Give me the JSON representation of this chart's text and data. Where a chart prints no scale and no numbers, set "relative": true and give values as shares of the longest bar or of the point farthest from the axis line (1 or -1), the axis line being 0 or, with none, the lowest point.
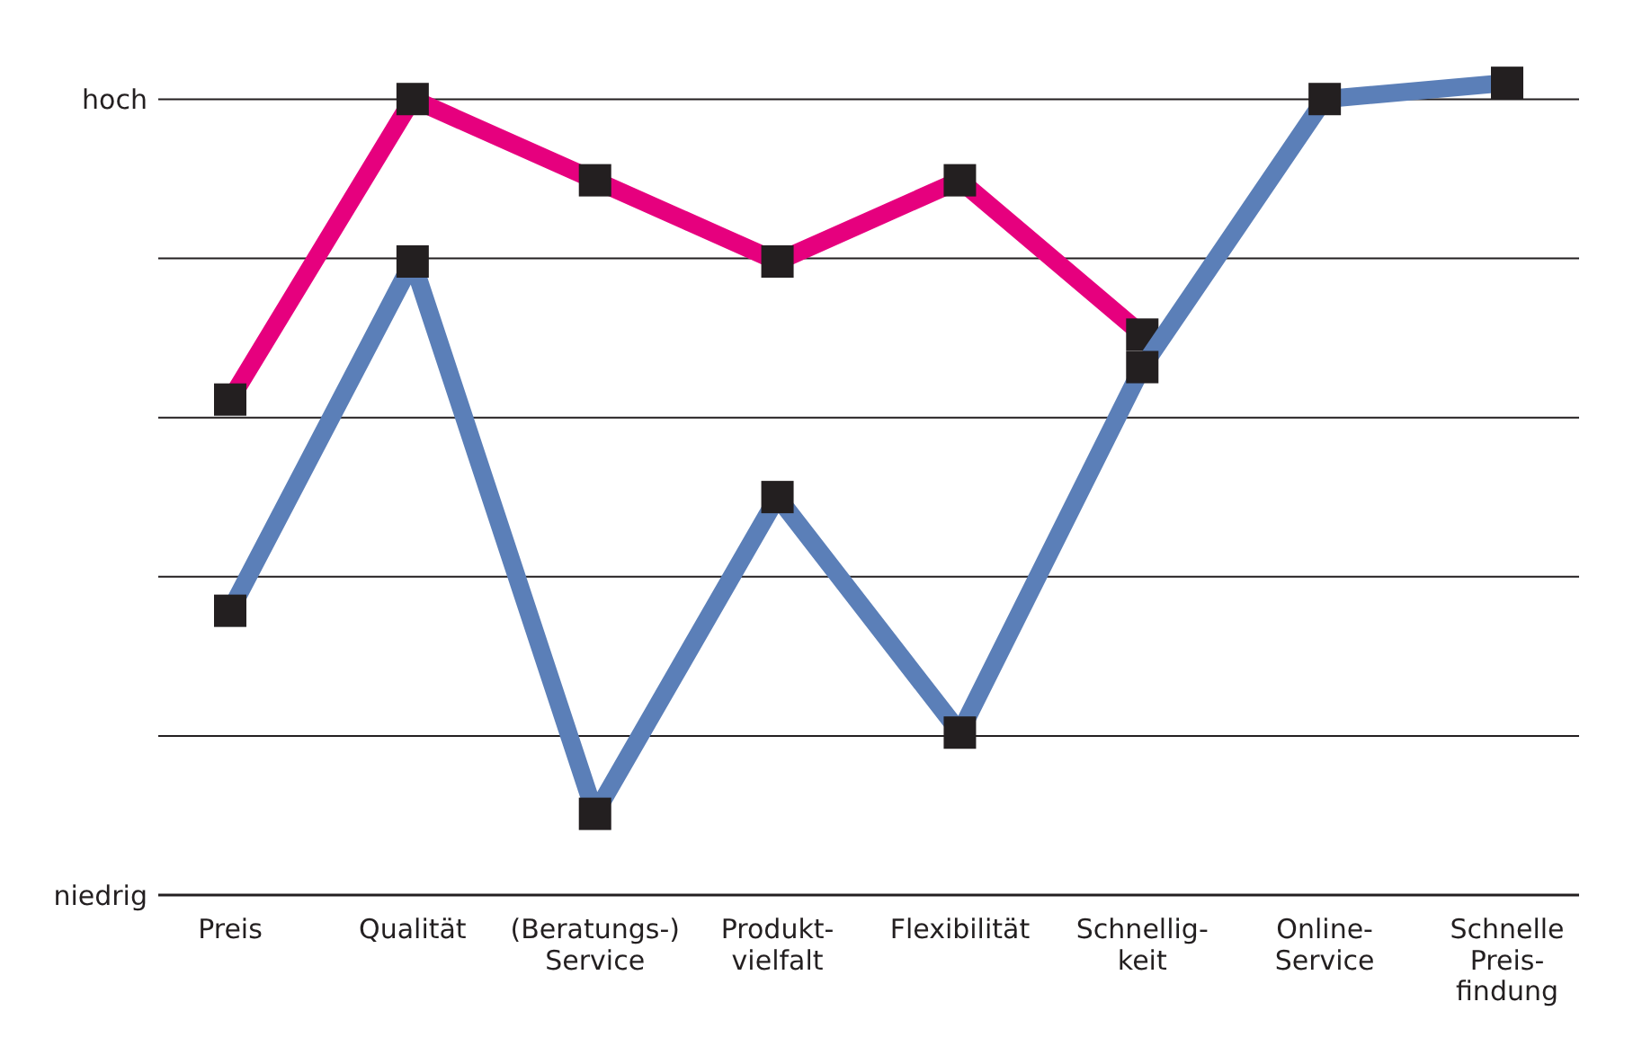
{
  "chart_data": {
    "type": "line",
    "categories": [
      "Preis",
      "Qualität",
      "(Beratungs-)\nService",
      "Produkt-\nvielfalt",
      "Flexibilität",
      "Schnellig-\nkeit",
      "Online-\nService",
      "Schnelle\nPreis-\nfindung"
    ],
    "series": [
      {
        "color": "#e6007e",
        "values": [
          0.61,
          0.98,
          0.88,
          0.78,
          0.88,
          0.69,
          null,
          null
        ]
      },
      {
        "color": "#5b7fb8",
        "values": [
          0.35,
          0.78,
          0.1,
          0.49,
          0.2,
          0.65,
          0.98,
          1
        ]
      }
    ],
    "relative": true,
    "annotations": [
      "hoch",
      "niedrig"
    ],
    "grid": "y",
    "marker": "square",
    "line_style": "solid"
  }
}
